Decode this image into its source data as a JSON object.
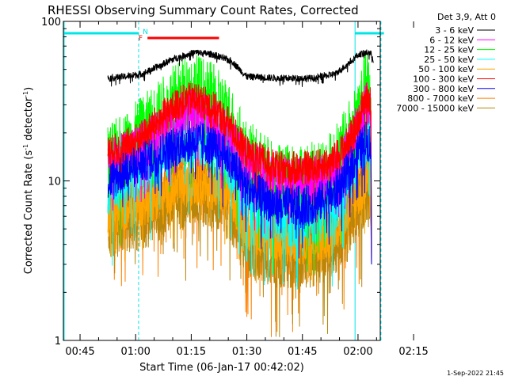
{
  "chart_data": {
    "type": "line",
    "title": "RHESSI Observing Summary Count Rates, Corrected",
    "xlabel": "Start Time (06-Jan-17 00:42:02)",
    "ylabel_main": "Corrected Count Rate (s",
    "ylabel_sup1": "-1",
    "ylabel_mid": " detector",
    "ylabel_sup2": "-1",
    "ylabel_end": ")",
    "footer": "1-Sep-2022 21:45",
    "legend_title": "Det 3,9, Att 0",
    "y_scale": "log",
    "ylim": [
      1,
      100
    ],
    "y_ticks": [
      {
        "value": 1,
        "label": "1"
      },
      {
        "value": 10,
        "label": "10"
      },
      {
        "value": 100,
        "label": "100"
      }
    ],
    "xlim_minutes": [
      40.5,
      126
    ],
    "x_ticks": [
      {
        "minute": 45,
        "label": "00:45"
      },
      {
        "minute": 60,
        "label": "01:00"
      },
      {
        "minute": 75,
        "label": "01:15"
      },
      {
        "minute": 90,
        "label": "01:30"
      },
      {
        "minute": 105,
        "label": "01:45"
      },
      {
        "minute": 120,
        "label": "02:00"
      },
      {
        "minute": 135,
        "label": "02:15"
      }
    ],
    "flags": [
      {
        "label": "N",
        "color": "#00e0e0",
        "minute": 61.5
      },
      {
        "label": "F",
        "color": "#ff0000",
        "minute": 61.2
      }
    ],
    "series": [
      {
        "name": "3 - 6 keV",
        "color": "#000000",
        "key": [
          [
            52.5,
            44
          ],
          [
            57,
            45
          ],
          [
            62,
            47
          ],
          [
            66,
            52
          ],
          [
            70,
            58
          ],
          [
            76,
            64
          ],
          [
            81,
            62
          ],
          [
            86,
            56
          ],
          [
            90,
            45
          ],
          [
            100,
            44
          ],
          [
            108,
            44
          ],
          [
            114,
            47
          ],
          [
            118,
            56
          ],
          [
            120,
            62
          ],
          [
            123,
            64
          ],
          [
            124,
            60
          ]
        ]
      },
      {
        "name": "6 - 12 keV",
        "color": "#ff00ff",
        "key": [
          [
            52.5,
            13
          ],
          [
            56,
            14
          ],
          [
            62,
            17
          ],
          [
            67,
            20
          ],
          [
            72,
            25
          ],
          [
            76,
            27
          ],
          [
            80,
            24
          ],
          [
            85,
            19
          ],
          [
            90,
            13
          ],
          [
            98,
            10
          ],
          [
            107,
            10
          ],
          [
            113,
            11
          ],
          [
            117,
            15
          ],
          [
            120,
            22
          ],
          [
            122.5,
            32
          ],
          [
            123.5,
            28
          ]
        ]
      },
      {
        "name": "12 - 25 keV",
        "color": "#00ff00",
        "key": [
          [
            52.5,
            13
          ],
          [
            56,
            15
          ],
          [
            62,
            20
          ],
          [
            67,
            26
          ],
          [
            72,
            34
          ],
          [
            76,
            37
          ],
          [
            80,
            33
          ],
          [
            85,
            25
          ],
          [
            90,
            14
          ],
          [
            98,
            10
          ],
          [
            107,
            10
          ],
          [
            113,
            12
          ],
          [
            117,
            17
          ],
          [
            120,
            27
          ],
          [
            122.5,
            40
          ],
          [
            123.5,
            34
          ]
        ]
      },
      {
        "name": "25 - 50 keV",
        "color": "#00ffff",
        "key": [
          [
            52.5,
            9
          ],
          [
            56,
            10
          ],
          [
            62,
            12
          ],
          [
            67,
            15
          ],
          [
            72,
            19
          ],
          [
            76,
            20
          ],
          [
            80,
            18
          ],
          [
            85,
            14
          ],
          [
            90,
            8
          ],
          [
            98,
            6
          ],
          [
            107,
            6
          ],
          [
            113,
            7
          ],
          [
            117,
            10
          ],
          [
            120,
            15
          ],
          [
            122.5,
            21
          ],
          [
            123.5,
            19
          ]
        ]
      },
      {
        "name": "50 - 100 keV",
        "color": "#ffa500",
        "key": [
          [
            52.5,
            6
          ],
          [
            56,
            6.5
          ],
          [
            62,
            7
          ],
          [
            67,
            8
          ],
          [
            72,
            9
          ],
          [
            76,
            9.5
          ],
          [
            80,
            9
          ],
          [
            85,
            8
          ],
          [
            90,
            5
          ],
          [
            98,
            4
          ],
          [
            107,
            4
          ],
          [
            113,
            4.5
          ],
          [
            117,
            6
          ],
          [
            120,
            8
          ],
          [
            122.5,
            10
          ],
          [
            123.5,
            9
          ]
        ]
      },
      {
        "name": "100 - 300 keV",
        "color": "#ff0000",
        "key": [
          [
            52.5,
            15
          ],
          [
            56,
            16
          ],
          [
            62,
            19
          ],
          [
            67,
            25
          ],
          [
            72,
            31
          ],
          [
            76,
            33
          ],
          [
            80,
            30
          ],
          [
            85,
            23
          ],
          [
            90,
            15
          ],
          [
            98,
            12
          ],
          [
            107,
            12
          ],
          [
            113,
            13
          ],
          [
            117,
            17
          ],
          [
            120,
            24
          ],
          [
            122.5,
            35
          ],
          [
            123.5,
            30
          ]
        ]
      },
      {
        "name": "300 - 800 keV",
        "color": "#0000ff",
        "key": [
          [
            52.5,
            10
          ],
          [
            56,
            11
          ],
          [
            62,
            13
          ],
          [
            67,
            15
          ],
          [
            72,
            17
          ],
          [
            76,
            18
          ],
          [
            80,
            17
          ],
          [
            85,
            14
          ],
          [
            90,
            9
          ],
          [
            98,
            7
          ],
          [
            107,
            7
          ],
          [
            113,
            8
          ],
          [
            117,
            11
          ],
          [
            120,
            15
          ],
          [
            122.5,
            18
          ],
          [
            123.5,
            17
          ]
        ]
      },
      {
        "name": "800 - 7000 keV",
        "color": "#ff8000",
        "key": [
          [
            52.5,
            6
          ],
          [
            56,
            6.5
          ],
          [
            62,
            7.5
          ],
          [
            67,
            9
          ],
          [
            72,
            10.5
          ],
          [
            76,
            11
          ],
          [
            80,
            10.5
          ],
          [
            85,
            9
          ],
          [
            90,
            5
          ],
          [
            98,
            4.2
          ],
          [
            107,
            4.2
          ],
          [
            113,
            4.8
          ],
          [
            117,
            6.5
          ],
          [
            120,
            8.5
          ],
          [
            122.5,
            11
          ],
          [
            123.5,
            10
          ]
        ]
      },
      {
        "name": "7000 - 15000 keV",
        "color": "#b8860b",
        "key": [
          [
            52.5,
            5
          ],
          [
            56,
            5.5
          ],
          [
            62,
            6
          ],
          [
            67,
            7
          ],
          [
            72,
            8
          ],
          [
            76,
            8.5
          ],
          [
            80,
            8
          ],
          [
            85,
            7
          ],
          [
            90,
            4
          ],
          [
            98,
            3.5
          ],
          [
            107,
            3.5
          ],
          [
            113,
            4
          ],
          [
            117,
            5
          ],
          [
            120,
            7
          ],
          [
            122.5,
            9
          ],
          [
            123.5,
            8
          ]
        ]
      }
    ]
  }
}
